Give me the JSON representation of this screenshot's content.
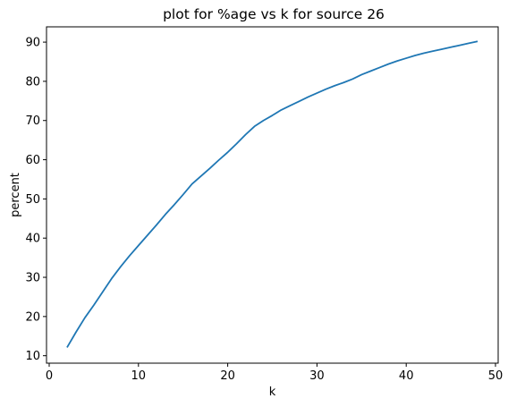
{
  "chart_data": {
    "type": "line",
    "title": "plot for %age vs k for source 26",
    "xlabel": "k",
    "ylabel": "percent",
    "xlim": [
      -0.3,
      50.3
    ],
    "ylim": [
      8.1,
      93.9
    ],
    "xticks": [
      0,
      10,
      20,
      30,
      40,
      50
    ],
    "yticks": [
      10,
      20,
      30,
      40,
      50,
      60,
      70,
      80,
      90
    ],
    "grid": false,
    "color": "#1f77b4",
    "series": [
      {
        "x": [
          2,
          3,
          4,
          5,
          6,
          7,
          8,
          9,
          10,
          11,
          12,
          13,
          14,
          15,
          16,
          17,
          18,
          19,
          20,
          21,
          22,
          23,
          24,
          25,
          26,
          27,
          28,
          29,
          30,
          31,
          32,
          33,
          34,
          35,
          36,
          37,
          38,
          39,
          40,
          41,
          42,
          43,
          44,
          45,
          46,
          47,
          48
        ],
        "values": [
          12.1,
          16.0,
          19.7,
          22.9,
          26.3,
          29.7,
          32.7,
          35.5,
          38.1,
          40.7,
          43.3,
          46.0,
          48.5,
          51.1,
          53.8,
          55.8,
          57.8,
          59.9,
          61.9,
          64.1,
          66.4,
          68.5,
          70.0,
          71.3,
          72.7,
          73.8,
          74.9,
          76.0,
          77.0,
          78.0,
          78.9,
          79.7,
          80.6,
          81.7,
          82.6,
          83.5,
          84.4,
          85.2,
          85.9,
          86.6,
          87.2,
          87.7,
          88.2,
          88.7,
          89.2,
          89.7,
          90.2
        ]
      }
    ]
  }
}
